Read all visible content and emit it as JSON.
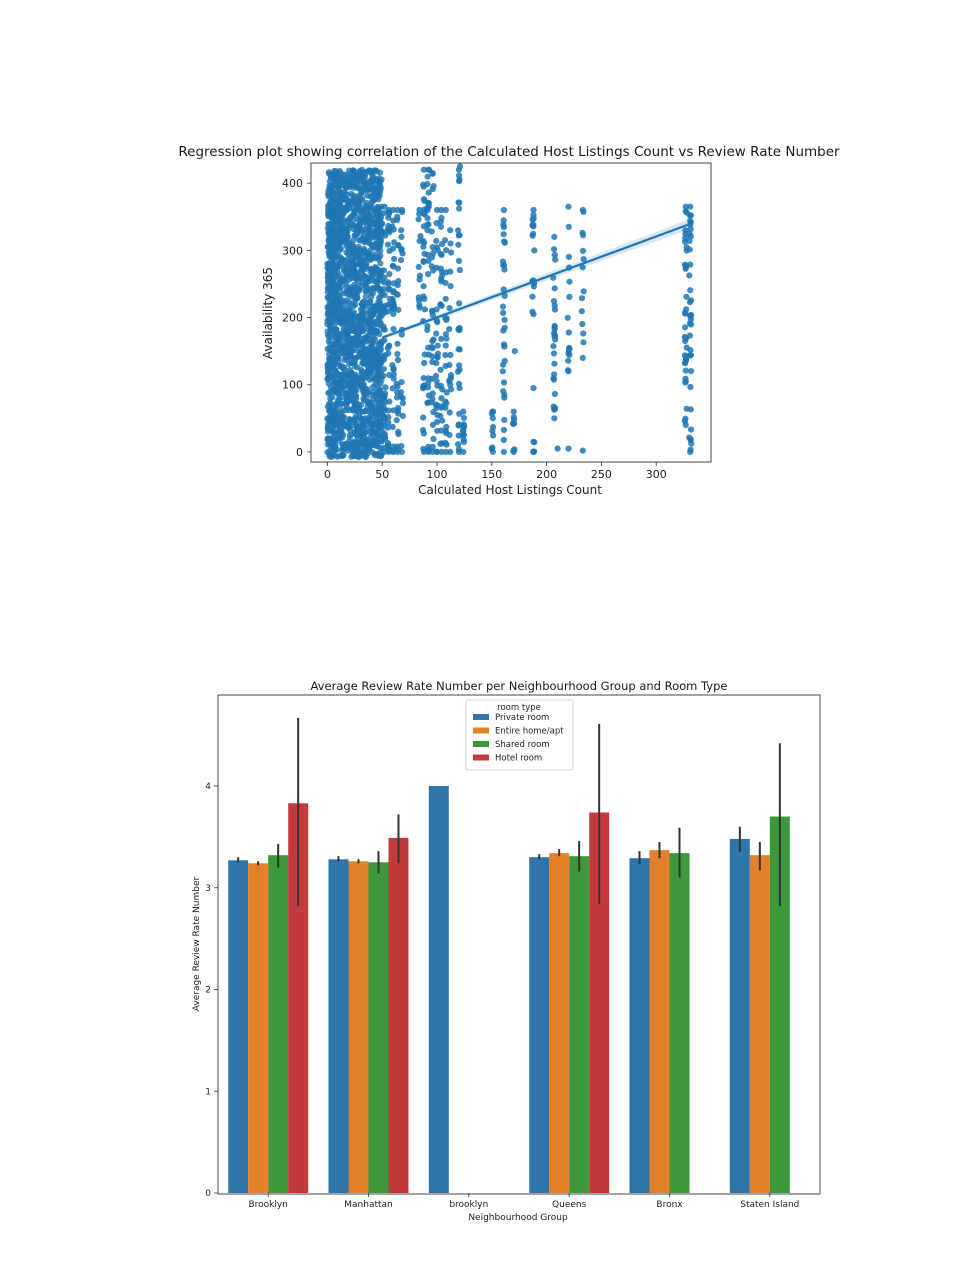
{
  "colors": {
    "scatter": "#1f77b4",
    "bars": [
      "#2e75ac",
      "#e3802a",
      "#3c983a",
      "#c23a3a"
    ],
    "errorbar": "#333333"
  },
  "chart_data": [
    {
      "type": "scatter",
      "title": "Regression plot showing correlation of the Calculated Host Listings Count vs Review Rate Number",
      "xlabel": "Calculated Host Listings Count",
      "ylabel": "Availability 365",
      "xlim": [
        -15,
        350
      ],
      "ylim": [
        -15,
        430
      ],
      "xticks": [
        0,
        50,
        100,
        150,
        200,
        250,
        300
      ],
      "yticks": [
        0,
        100,
        200,
        300,
        400
      ],
      "regression_line": {
        "x": [
          50,
          332
        ],
        "y": [
          170,
          340
        ]
      },
      "columns": [
        {
          "x": 52,
          "lo": 0,
          "hi": 365,
          "n": 40
        },
        {
          "x": 56,
          "lo": 0,
          "hi": 360,
          "n": 35
        },
        {
          "x": 60,
          "lo": 0,
          "hi": 360,
          "n": 32
        },
        {
          "x": 64,
          "lo": 0,
          "hi": 360,
          "n": 25
        },
        {
          "x": 68,
          "lo": 0,
          "hi": 360,
          "n": 16
        },
        {
          "x": 84,
          "lo": 215,
          "hi": 360,
          "n": 10
        },
        {
          "x": 88,
          "lo": 0,
          "hi": 420,
          "n": 30
        },
        {
          "x": 92,
          "lo": 0,
          "hi": 420,
          "n": 30
        },
        {
          "x": 96,
          "lo": 0,
          "hi": 415,
          "n": 26
        },
        {
          "x": 100,
          "lo": 0,
          "hi": 360,
          "n": 24
        },
        {
          "x": 104,
          "lo": 0,
          "hi": 360,
          "n": 26
        },
        {
          "x": 108,
          "lo": 0,
          "hi": 360,
          "n": 22
        },
        {
          "x": 112,
          "lo": 0,
          "hi": 330,
          "n": 16
        },
        {
          "x": 120,
          "lo": 0,
          "hi": 420,
          "n": 30
        },
        {
          "x": 124,
          "lo": 0,
          "hi": 60,
          "n": 10
        },
        {
          "x": 151,
          "lo": 0,
          "hi": 60,
          "n": 8
        },
        {
          "x": 161,
          "lo": 0,
          "hi": 360,
          "n": 28
        },
        {
          "x": 170,
          "lo": 0,
          "hi": 60,
          "n": 7
        },
        {
          "x": 188,
          "lo": 205,
          "hi": 360,
          "n": 16
        },
        {
          "x": 188,
          "lo": 0,
          "hi": 15,
          "n": 3
        },
        {
          "x": 207,
          "lo": 50,
          "hi": 320,
          "n": 26
        },
        {
          "x": 220,
          "lo": 120,
          "hi": 365,
          "n": 14
        },
        {
          "x": 233,
          "lo": 140,
          "hi": 360,
          "n": 12
        },
        {
          "x": 327,
          "lo": 40,
          "hi": 365,
          "n": 34
        },
        {
          "x": 331,
          "lo": 0,
          "hi": 365,
          "n": 34
        }
      ],
      "extra_points": [
        [
          160,
          120
        ],
        [
          171,
          150
        ],
        [
          188,
          95
        ],
        [
          210,
          5
        ],
        [
          220,
          5
        ],
        [
          233,
          2
        ],
        [
          121,
          425
        ],
        [
          150,
          5
        ]
      ]
    },
    {
      "type": "bar",
      "title": "Average Review Rate Number per Neighbourhood Group and Room Type",
      "xlabel": "Neighbourhood Group",
      "ylabel": "Average Review Rate Number",
      "ylim": [
        0,
        4.9
      ],
      "yticks": [
        0,
        1,
        2,
        3,
        4
      ],
      "categories": [
        "Brooklyn",
        "Manhattan",
        "brooklyn",
        "Queens",
        "Bronx",
        "Staten Island"
      ],
      "legend_title": "room type",
      "series": [
        {
          "name": "Private room",
          "values": [
            3.27,
            3.28,
            4.0,
            3.3,
            3.29,
            3.48
          ],
          "err_low": [
            3.25,
            3.26,
            null,
            3.28,
            3.23,
            3.35
          ],
          "err_high": [
            3.3,
            3.31,
            null,
            3.33,
            3.36,
            3.6
          ]
        },
        {
          "name": "Entire home/apt",
          "values": [
            3.24,
            3.26,
            null,
            3.34,
            3.37,
            3.32
          ],
          "err_low": [
            3.22,
            3.24,
            null,
            3.31,
            3.29,
            3.17
          ],
          "err_high": [
            3.26,
            3.28,
            null,
            3.38,
            3.45,
            3.45
          ]
        },
        {
          "name": "Shared room",
          "values": [
            3.32,
            3.25,
            null,
            3.31,
            3.34,
            3.7
          ],
          "err_low": [
            3.2,
            3.14,
            null,
            3.16,
            3.1,
            2.82
          ],
          "err_high": [
            3.43,
            3.36,
            null,
            3.46,
            3.59,
            4.42
          ]
        },
        {
          "name": "Hotel room",
          "values": [
            3.83,
            3.49,
            null,
            3.74,
            null,
            null
          ],
          "err_low": [
            2.82,
            3.24,
            null,
            2.84,
            null,
            null
          ],
          "err_high": [
            4.67,
            3.72,
            null,
            4.61,
            null,
            null
          ]
        }
      ]
    }
  ]
}
